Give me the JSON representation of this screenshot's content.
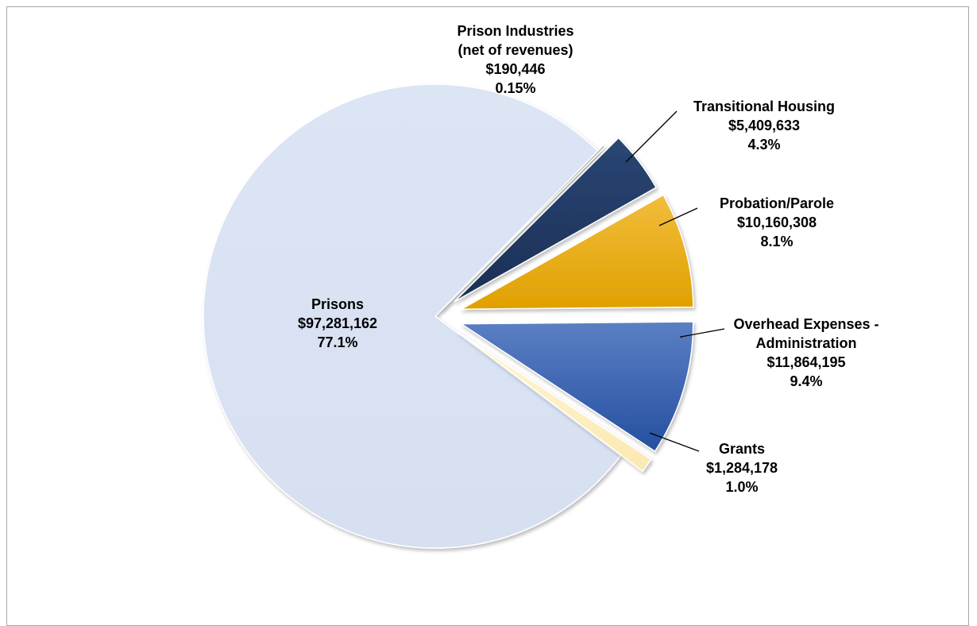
{
  "chart_data": {
    "type": "pie",
    "title": "",
    "slices": [
      {
        "name": "Prisons",
        "value": 97281162,
        "value_label": "$97,281,162",
        "percent_label": "77.1%",
        "color": "#dae3f3"
      },
      {
        "name": "Prison Industries (net of revenues)",
        "name_lines": [
          "Prison Industries",
          "(net of revenues)"
        ],
        "value": 190446,
        "value_label": "$190,446",
        "percent_label": "0.15%",
        "color": "#7f7f7f"
      },
      {
        "name": "Transitional Housing",
        "value": 5409633,
        "value_label": "$5,409,633",
        "percent_label": "4.3%",
        "color": "#1f3864"
      },
      {
        "name": "Probation/Parole",
        "value": 10160308,
        "value_label": "$10,160,308",
        "percent_label": "8.1%",
        "color": "#e8ac00"
      },
      {
        "name": "Overhead Expenses - Administration",
        "name_lines": [
          "Overhead Expenses -",
          "Administration"
        ],
        "value": 11864195,
        "value_label": "$11,864,195",
        "percent_label": "9.4%",
        "color": "#2f5aa8"
      },
      {
        "name": "Grants",
        "value": 1284178,
        "value_label": "$1,284,178",
        "percent_label": "1.0%",
        "color": "#fdf2cc"
      }
    ],
    "legend": "none",
    "data_labels": "outside-with-leaders"
  }
}
